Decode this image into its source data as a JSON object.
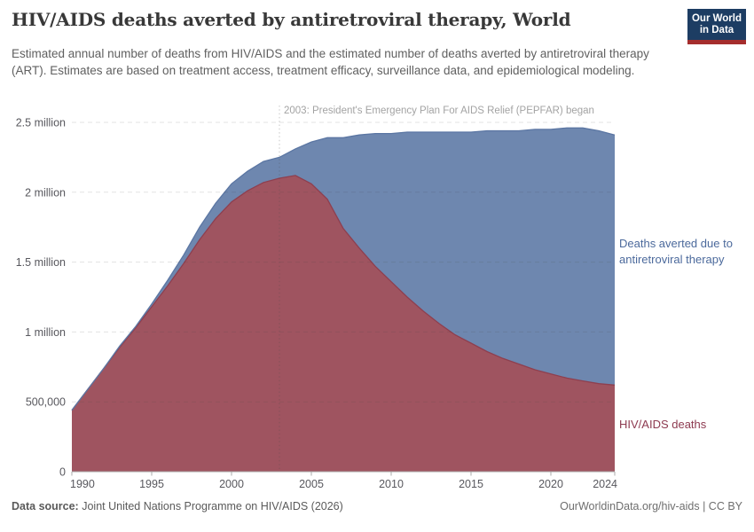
{
  "header": {
    "title": "HIV/AIDS deaths averted by antiretroviral therapy, World",
    "subtitle": "Estimated annual number of deaths from HIV/AIDS and the estimated number of deaths averted by antiretroviral therapy (ART). Estimates are based on treatment access, treatment efficacy, surveillance data, and epidemiological modeling.",
    "logo": {
      "line1": "Our World",
      "line2": "in Data",
      "bg": "#1d3d63",
      "stripe": "#a52d2d"
    }
  },
  "chart_data": {
    "type": "area",
    "stacked": true,
    "title": "HIV/AIDS deaths averted by antiretroviral therapy, World",
    "x": [
      1990,
      1991,
      1992,
      1993,
      1994,
      1995,
      1996,
      1997,
      1998,
      1999,
      2000,
      2001,
      2002,
      2003,
      2004,
      2005,
      2006,
      2007,
      2008,
      2009,
      2010,
      2011,
      2012,
      2013,
      2014,
      2015,
      2016,
      2017,
      2018,
      2019,
      2020,
      2021,
      2022,
      2023,
      2024
    ],
    "series": [
      {
        "name": "HIV/AIDS deaths",
        "color": "#9f5460",
        "label_color": "#8d3a50",
        "values": [
          0.44,
          0.59,
          0.74,
          0.89,
          1.03,
          1.18,
          1.33,
          1.49,
          1.66,
          1.81,
          1.93,
          2.01,
          2.07,
          2.1,
          2.12,
          2.06,
          1.95,
          1.74,
          1.6,
          1.47,
          1.36,
          1.25,
          1.15,
          1.06,
          0.98,
          0.92,
          0.86,
          0.81,
          0.77,
          0.73,
          0.7,
          0.67,
          0.65,
          0.63,
          0.62
        ]
      },
      {
        "name": "Deaths averted due to antiretroviral therapy",
        "color": "#6e87af",
        "label_color": "#4c6a9c",
        "values": [
          0,
          0,
          0,
          0.01,
          0.01,
          0.02,
          0.04,
          0.06,
          0.09,
          0.11,
          0.13,
          0.14,
          0.15,
          0.15,
          0.19,
          0.3,
          0.44,
          0.65,
          0.81,
          0.95,
          1.06,
          1.18,
          1.28,
          1.37,
          1.45,
          1.51,
          1.58,
          1.63,
          1.67,
          1.72,
          1.75,
          1.79,
          1.81,
          1.81,
          1.79
        ]
      }
    ],
    "unit": "millions of deaths per year",
    "xlim": [
      1990,
      2024
    ],
    "ylim": [
      0,
      2.5
    ],
    "grid": "horizontal-dashed",
    "legend_position": "right-edge-labels",
    "y_ticks": [
      {
        "v": 0,
        "label": "0"
      },
      {
        "v": 0.5,
        "label": "500,000"
      },
      {
        "v": 1,
        "label": "1 million"
      },
      {
        "v": 1.5,
        "label": "1.5 million"
      },
      {
        "v": 2,
        "label": "2 million"
      },
      {
        "v": 2.5,
        "label": "2.5 million"
      }
    ],
    "x_ticks": [
      1990,
      1995,
      2000,
      2005,
      2010,
      2015,
      2020,
      2024
    ],
    "annotation": {
      "year": 2003,
      "text": "2003: President's Emergency Plan For AIDS Relief (PEPFAR) began"
    }
  },
  "footer": {
    "datasource_label": "Data source:",
    "datasource": "Joint United Nations Programme on HIV/AIDS (2026)",
    "right": "OurWorldinData.org/hiv-aids | CC BY"
  }
}
